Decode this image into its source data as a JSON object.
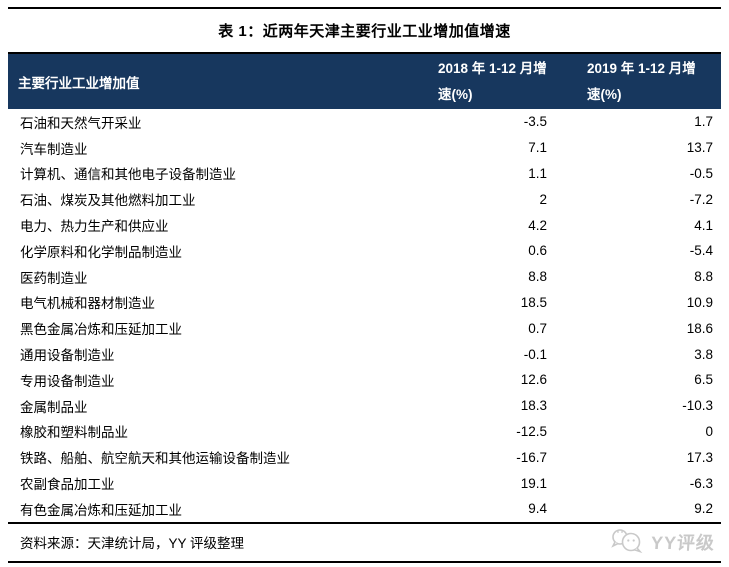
{
  "title": "表 1：近两年天津主要行业工业增加值增速",
  "table": {
    "headers": {
      "industry": "主要行业工业增加值",
      "y2018_line1": "2018 年 1-12 月增",
      "y2018_line2": "速(%)",
      "y2019_line1": "2019 年 1-12 月增",
      "y2019_line2": "速(%)"
    },
    "rows": [
      {
        "name": "石油和天然气开采业",
        "v2018": "-3.5",
        "v2019": "1.7"
      },
      {
        "name": "汽车制造业",
        "v2018": "7.1",
        "v2019": "13.7"
      },
      {
        "name": "计算机、通信和其他电子设备制造业",
        "v2018": "1.1",
        "v2019": "-0.5"
      },
      {
        "name": "石油、煤炭及其他燃料加工业",
        "v2018": "2",
        "v2019": "-7.2"
      },
      {
        "name": "电力、热力生产和供应业",
        "v2018": "4.2",
        "v2019": "4.1"
      },
      {
        "name": "化学原料和化学制品制造业",
        "v2018": "0.6",
        "v2019": "-5.4"
      },
      {
        "name": "医药制造业",
        "v2018": "8.8",
        "v2019": "8.8"
      },
      {
        "name": "电气机械和器材制造业",
        "v2018": "18.5",
        "v2019": "10.9"
      },
      {
        "name": "黑色金属冶炼和压延加工业",
        "v2018": "0.7",
        "v2019": "18.6"
      },
      {
        "name": "通用设备制造业",
        "v2018": "-0.1",
        "v2019": "3.8"
      },
      {
        "name": "专用设备制造业",
        "v2018": "12.6",
        "v2019": "6.5"
      },
      {
        "name": "金属制品业",
        "v2018": "18.3",
        "v2019": "-10.3"
      },
      {
        "name": "橡胶和塑料制品业",
        "v2018": "-12.5",
        "v2019": "0"
      },
      {
        "name": "铁路、船舶、航空航天和其他运输设备制造业",
        "v2018": "-16.7",
        "v2019": "17.3"
      },
      {
        "name": "农副食品加工业",
        "v2018": "19.1",
        "v2019": "-6.3"
      },
      {
        "name": "有色金属冶炼和压延加工业",
        "v2018": "9.4",
        "v2019": "9.2"
      }
    ]
  },
  "footer": {
    "source": "资料来源：天津统计局，YY 评级整理",
    "logo_text": "YY评级"
  },
  "colors": {
    "header_bg": "#17375E",
    "header_text": "#FFFFFF",
    "rule": "#000000",
    "logo_gray": "#C9C9C9"
  }
}
